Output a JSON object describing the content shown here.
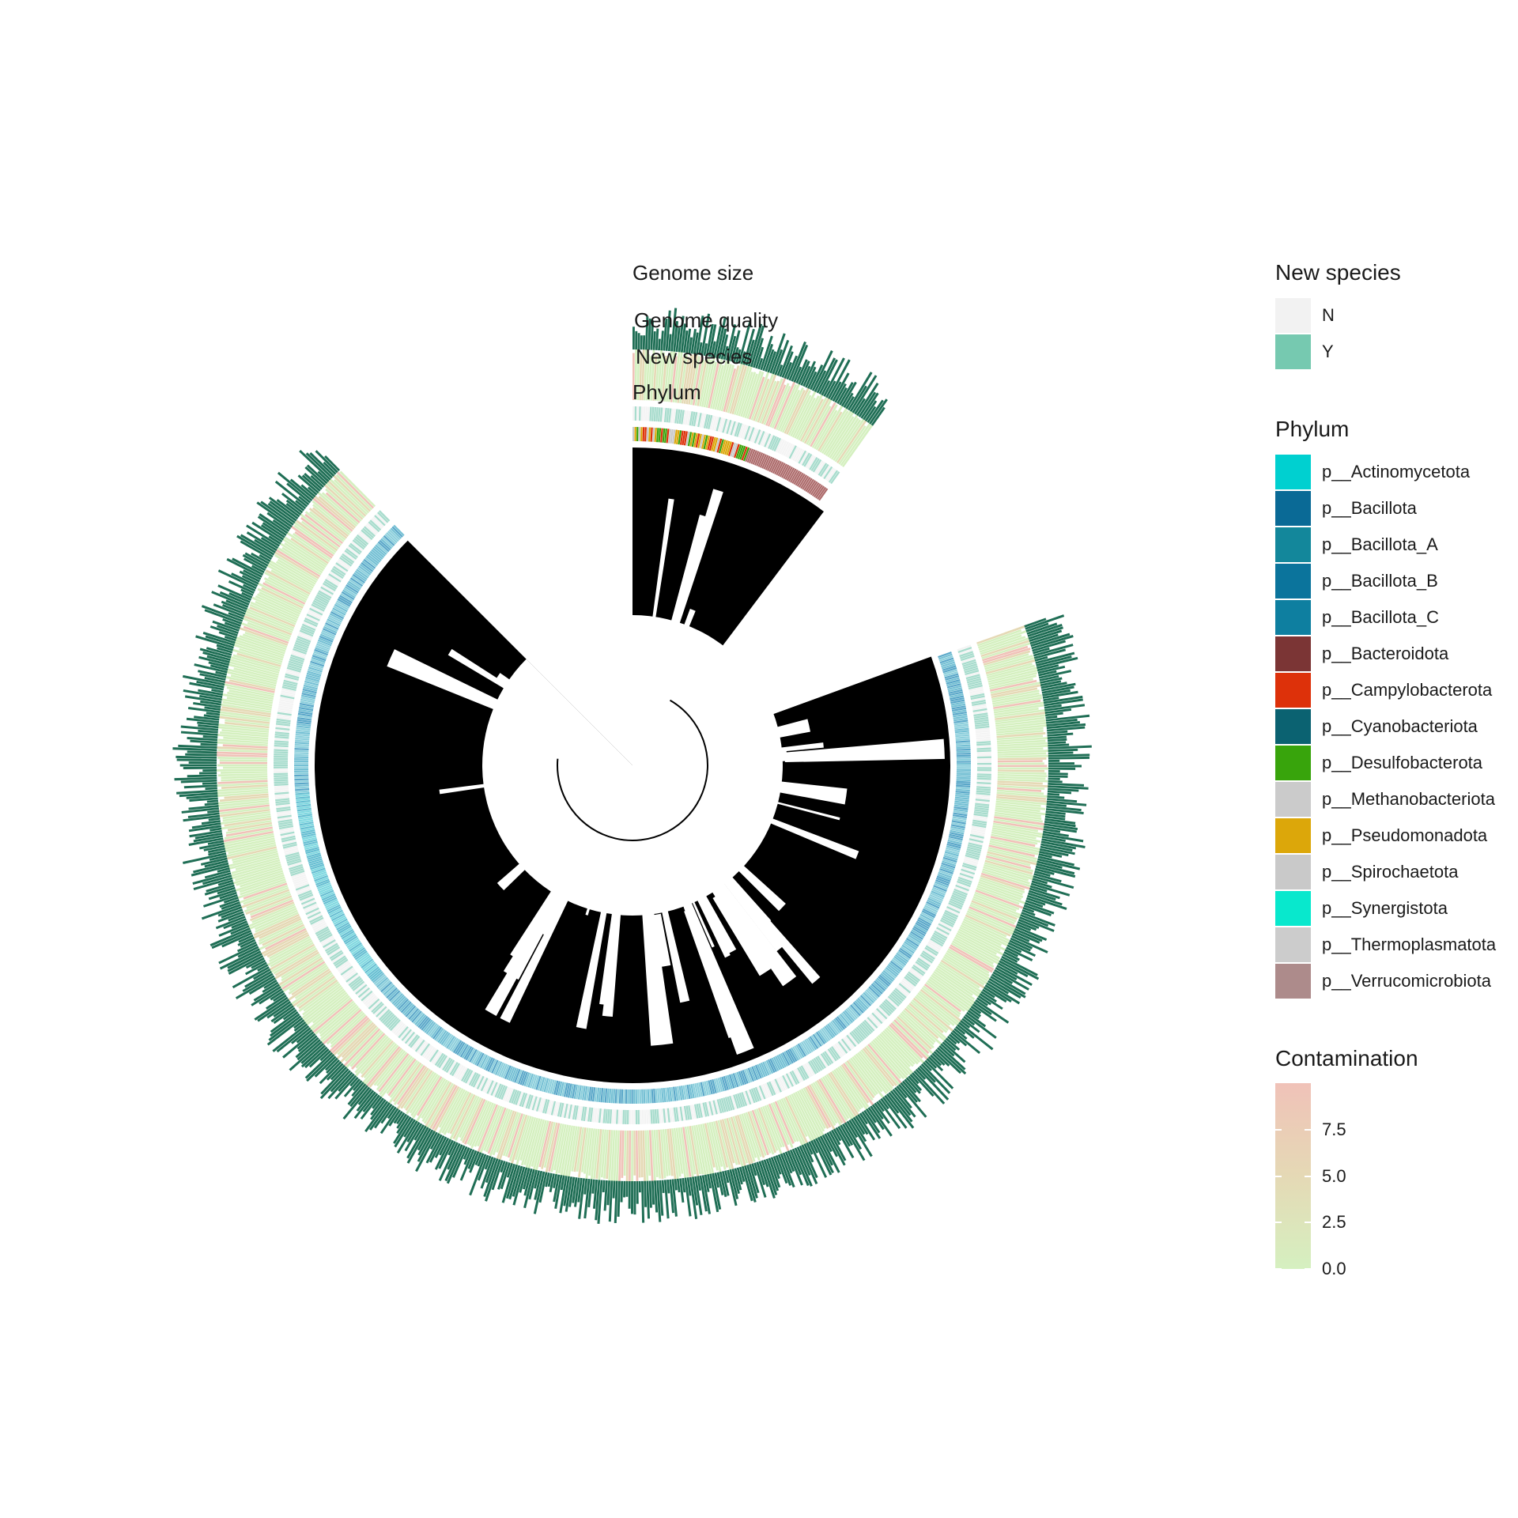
{
  "ring_labels": {
    "genome_size": "Genome size",
    "genome_quality": "Genome quality",
    "new_species": "New species",
    "phylum": "Phylum"
  },
  "legends": {
    "new_species": {
      "title": "New species",
      "items": [
        {
          "label": "N",
          "color": "#f2f2f2"
        },
        {
          "label": "Y",
          "color": "#76c9b0"
        }
      ]
    },
    "phylum": {
      "title": "Phylum",
      "items": [
        {
          "label": "p__Actinomycetota",
          "color": "#00d0d0"
        },
        {
          "label": "p__Bacillota",
          "color": "#0a6a96"
        },
        {
          "label": "p__Bacillota_A",
          "color": "#13879b"
        },
        {
          "label": "p__Bacillota_B",
          "color": "#0b749c"
        },
        {
          "label": "p__Bacillota_C",
          "color": "#0e7fa0"
        },
        {
          "label": "p__Bacteroidota",
          "color": "#7b3535"
        },
        {
          "label": "p__Campylobacterota",
          "color": "#dd310a"
        },
        {
          "label": "p__Cyanobacteriota",
          "color": "#0b6271"
        },
        {
          "label": "p__Desulfobacterota",
          "color": "#38a40c"
        },
        {
          "label": "p__Methanobacteriota",
          "color": "#cbcbcb"
        },
        {
          "label": "p__Pseudomonadota",
          "color": "#dca70a"
        },
        {
          "label": "p__Spirochaetota",
          "color": "#c9c9c9"
        },
        {
          "label": "p__Synergistota",
          "color": "#08e8cd"
        },
        {
          "label": "p__Thermoplasmatota",
          "color": "#cccccc"
        },
        {
          "label": "p__Verrucomicrobiota",
          "color": "#ad8b8b"
        }
      ]
    },
    "contamination": {
      "title": "Contamination",
      "colors": [
        "#d5f0c0",
        "#e5d9b5",
        "#f0c2b8"
      ],
      "ticks": [
        "7.5",
        "5.0",
        "2.5",
        "0.0"
      ],
      "tick_values": [
        7.5,
        5.0,
        2.5,
        0.0
      ],
      "range": [
        0,
        10
      ]
    }
  }
}
